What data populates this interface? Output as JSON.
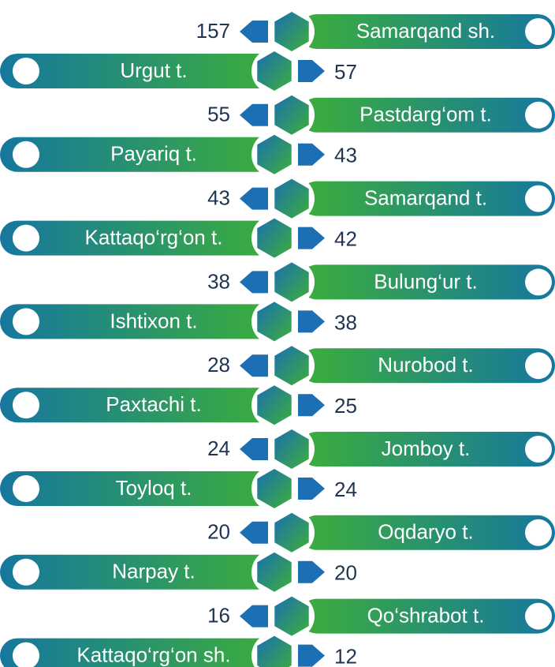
{
  "items": [
    {
      "name": "Samarqand sh.",
      "value": 157
    },
    {
      "name": "Urgut t.",
      "value": 57
    },
    {
      "name": "Pastdarg‘om t.",
      "value": 55
    },
    {
      "name": "Payariq t.",
      "value": 43
    },
    {
      "name": "Samarqand t.",
      "value": 43
    },
    {
      "name": "Kattaqo‘rg‘on t.",
      "value": 42
    },
    {
      "name": "Bulung‘ur t.",
      "value": 38
    },
    {
      "name": "Ishtixon t.",
      "value": 38
    },
    {
      "name": "Nurobod t.",
      "value": 28
    },
    {
      "name": "Paxtachi t.",
      "value": 25
    },
    {
      "name": "Jomboy t.",
      "value": 24
    },
    {
      "name": "Toyloq t.",
      "value": 24
    },
    {
      "name": "Oqdaryo t.",
      "value": 20
    },
    {
      "name": "Narpay t.",
      "value": 20
    },
    {
      "name": "Qo‘shrabot t.",
      "value": 16
    },
    {
      "name": "Kattaqo‘rg‘on sh.",
      "value": 12
    }
  ]
}
